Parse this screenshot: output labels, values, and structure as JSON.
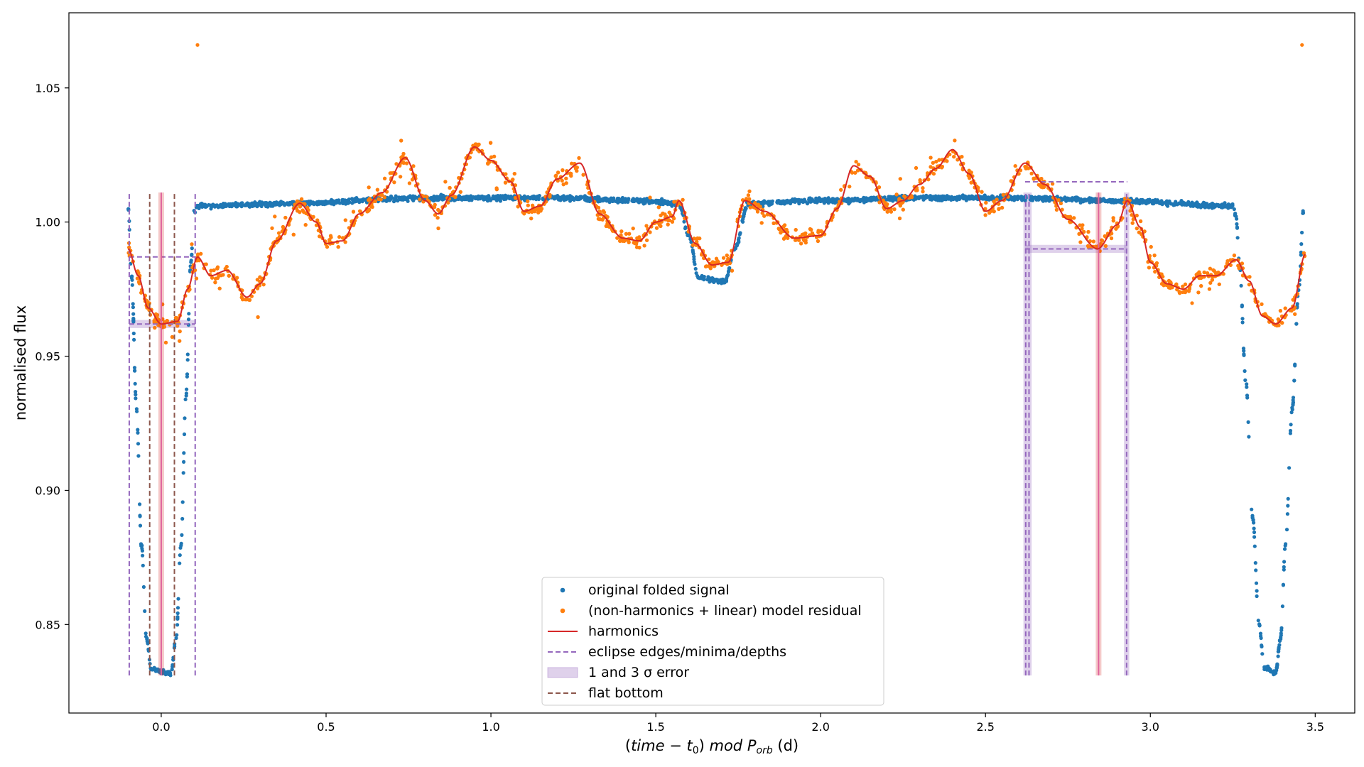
{
  "chart_data": {
    "type": "scatter",
    "xlabel_parts": {
      "open": "(",
      "italic": "time",
      "minus": " − ",
      "t": "t",
      "t_sub": "0",
      "close": ")",
      "mod": " mod ",
      "P": "P",
      "P_sub": "orb",
      "unit": " (d)"
    },
    "ylabel": "normalised flux",
    "xlim": [
      -0.28,
      3.62
    ],
    "ylim": [
      0.817,
      1.078
    ],
    "xticks": [
      0.0,
      0.5,
      1.0,
      1.5,
      2.0,
      2.5,
      3.0,
      3.5
    ],
    "xtick_labels": [
      "0.0",
      "0.5",
      "1.0",
      "1.5",
      "2.0",
      "2.5",
      "3.0",
      "3.5"
    ],
    "yticks": [
      0.85,
      0.9,
      0.95,
      1.0,
      1.05
    ],
    "ytick_labels": [
      "0.85",
      "0.90",
      "0.95",
      "1.00",
      "1.05"
    ],
    "grid": false,
    "legend_position": "bottom-center",
    "legend": [
      {
        "label": "original folded signal",
        "kind": "dot",
        "color": "#1f77b4"
      },
      {
        "label": "(non-harmonics + linear) model residual",
        "kind": "dot",
        "color": "#ff7f0e"
      },
      {
        "label": "harmonics",
        "kind": "line",
        "color": "#d62728"
      },
      {
        "label": "eclipse edges/minima/depths",
        "kind": "dash",
        "color": "#9467bd"
      },
      {
        "label": "1 and 3 σ error",
        "kind": "patch",
        "color": "#9467bd"
      },
      {
        "label": "flat bottom",
        "kind": "dash",
        "color": "#8c564b"
      }
    ],
    "colors": {
      "original": "#1f77b4",
      "residual": "#ff7f0e",
      "harmonics": "#d62728",
      "eclipse": "#9467bd",
      "flat": "#8c564b",
      "minima": "#e377c2"
    },
    "harmonics_knots": [
      [
        -0.1,
        0.99
      ],
      [
        -0.07,
        0.98
      ],
      [
        -0.04,
        0.968
      ],
      [
        0.0,
        0.962
      ],
      [
        0.05,
        0.963
      ],
      [
        0.08,
        0.975
      ],
      [
        0.11,
        0.987
      ],
      [
        0.15,
        0.98
      ],
      [
        0.2,
        0.982
      ],
      [
        0.26,
        0.972
      ],
      [
        0.3,
        0.977
      ],
      [
        0.35,
        0.993
      ],
      [
        0.42,
        1.007
      ],
      [
        0.47,
        1.0
      ],
      [
        0.5,
        0.992
      ],
      [
        0.55,
        0.993
      ],
      [
        0.6,
        1.003
      ],
      [
        0.67,
        1.011
      ],
      [
        0.74,
        1.024
      ],
      [
        0.8,
        1.008
      ],
      [
        0.84,
        1.003
      ],
      [
        0.88,
        1.01
      ],
      [
        0.95,
        1.028
      ],
      [
        1.0,
        1.023
      ],
      [
        1.06,
        1.015
      ],
      [
        1.1,
        1.004
      ],
      [
        1.15,
        1.006
      ],
      [
        1.2,
        1.016
      ],
      [
        1.27,
        1.022
      ],
      [
        1.33,
        1.003
      ],
      [
        1.4,
        0.994
      ],
      [
        1.45,
        0.993
      ],
      [
        1.5,
        1.0
      ],
      [
        1.55,
        1.002
      ],
      [
        1.57,
        1.008
      ],
      [
        1.62,
        0.992
      ],
      [
        1.67,
        0.984
      ],
      [
        1.72,
        0.985
      ],
      [
        1.77,
        1.008
      ],
      [
        1.83,
        1.004
      ],
      [
        1.92,
        0.994
      ],
      [
        2.0,
        0.995
      ],
      [
        2.05,
        1.005
      ],
      [
        2.1,
        1.021
      ],
      [
        2.15,
        1.017
      ],
      [
        2.2,
        1.005
      ],
      [
        2.25,
        1.008
      ],
      [
        2.3,
        1.014
      ],
      [
        2.35,
        1.02
      ],
      [
        2.4,
        1.027
      ],
      [
        2.45,
        1.018
      ],
      [
        2.5,
        1.004
      ],
      [
        2.55,
        1.008
      ],
      [
        2.62,
        1.022
      ],
      [
        2.68,
        1.014
      ],
      [
        2.75,
        1.001
      ],
      [
        2.84,
        0.99
      ],
      [
        2.9,
        0.999
      ],
      [
        2.93,
        1.008
      ],
      [
        2.97,
        0.998
      ],
      [
        3.0,
        0.985
      ],
      [
        3.05,
        0.977
      ],
      [
        3.1,
        0.975
      ],
      [
        3.15,
        0.98
      ],
      [
        3.2,
        0.98
      ],
      [
        3.26,
        0.986
      ],
      [
        3.3,
        0.978
      ],
      [
        3.34,
        0.965
      ],
      [
        3.38,
        0.962
      ],
      [
        3.43,
        0.968
      ],
      [
        3.47,
        0.988
      ]
    ],
    "original_knots": [
      [
        -0.1,
        1.005
      ],
      [
        -0.09,
        0.98
      ],
      [
        -0.075,
        0.93
      ],
      [
        -0.06,
        0.88
      ],
      [
        -0.045,
        0.845
      ],
      [
        -0.03,
        0.833
      ],
      [
        0.03,
        0.832
      ],
      [
        0.045,
        0.845
      ],
      [
        0.06,
        0.88
      ],
      [
        0.075,
        0.935
      ],
      [
        0.09,
        0.985
      ],
      [
        0.1,
        1.004
      ],
      [
        0.11,
        1.006
      ],
      [
        0.4,
        1.007
      ],
      [
        0.8,
        1.009
      ],
      [
        1.0,
        1.009
      ],
      [
        1.2,
        1.009
      ],
      [
        1.45,
        1.008
      ],
      [
        1.57,
        1.007
      ],
      [
        1.6,
        0.995
      ],
      [
        1.63,
        0.979
      ],
      [
        1.71,
        0.978
      ],
      [
        1.74,
        0.99
      ],
      [
        1.78,
        1.007
      ],
      [
        2.0,
        1.008
      ],
      [
        2.3,
        1.009
      ],
      [
        2.6,
        1.009
      ],
      [
        2.9,
        1.008
      ],
      [
        3.25,
        1.006
      ],
      [
        3.26,
        1.002
      ],
      [
        3.27,
        0.985
      ],
      [
        3.29,
        0.94
      ],
      [
        3.31,
        0.89
      ],
      [
        3.33,
        0.85
      ],
      [
        3.345,
        0.834
      ],
      [
        3.38,
        0.832
      ],
      [
        3.395,
        0.845
      ],
      [
        3.41,
        0.88
      ],
      [
        3.43,
        0.93
      ],
      [
        3.45,
        0.975
      ],
      [
        3.465,
        1.005
      ]
    ],
    "original_outliers": [
      [
        0.11,
        1.066
      ],
      [
        3.46,
        1.066
      ]
    ],
    "eclipse_lines": {
      "edges": [
        -0.097,
        0.103,
        2.622,
        2.632,
        2.928
      ],
      "edges_ymin": 0.831,
      "edges_ymax": 1.011,
      "depth_levels": [
        {
          "x0": -0.097,
          "x1": 0.103,
          "y": 0.987
        },
        {
          "x0": 2.62,
          "x1": 2.93,
          "y": 1.015
        }
      ],
      "bottom_levels": [
        {
          "x0": -0.097,
          "x1": 0.103,
          "y": 0.962
        },
        {
          "x0": 2.62,
          "x1": 2.93,
          "y": 0.99
        }
      ]
    },
    "error_bands": [
      {
        "x0": 2.615,
        "x1": 2.64,
        "ymin": 0.831,
        "ymax": 1.011
      },
      {
        "x0": 2.92,
        "x1": 2.936,
        "ymin": 0.831,
        "ymax": 1.011
      },
      {
        "x0": 2.62,
        "x1": 2.93,
        "ymin": 0.9885,
        "ymax": 0.9915
      },
      {
        "x0": -0.097,
        "x1": 0.103,
        "ymin": 0.9605,
        "ymax": 0.9635
      }
    ],
    "flat_bottom_lines": [
      -0.035,
      0.04
    ],
    "flat_bottom_ymin": 0.831,
    "flat_bottom_ymax": 1.011,
    "minima_lines": [
      {
        "x": 0.0,
        "ymin": 0.831,
        "ymax": 1.011
      },
      {
        "x": 2.843,
        "ymin": 0.831,
        "ymax": 1.011
      }
    ]
  }
}
